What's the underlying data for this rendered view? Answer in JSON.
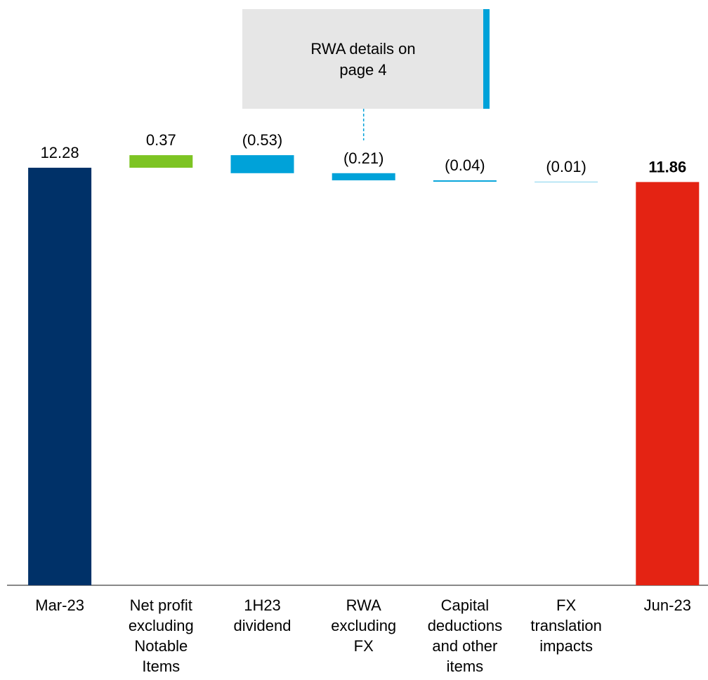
{
  "chart_data": {
    "type": "waterfall",
    "categories": [
      "Mar-23",
      "Net profit\nexcluding\nNotable\nItems",
      "1H23\ndividend",
      "RWA\nexcluding\nFX",
      "Capital\ndeductions\nand other\nitems",
      "FX\ntranslation\nimpacts",
      "Jun-23"
    ],
    "values": [
      12.28,
      0.37,
      -0.53,
      -0.21,
      -0.04,
      -0.01,
      11.86
    ],
    "value_labels": [
      "12.28",
      "0.37",
      "(0.53)",
      "(0.21)",
      "(0.04)",
      "(0.01)",
      "11.86"
    ],
    "totals": [
      true,
      false,
      false,
      false,
      false,
      false,
      true
    ],
    "colors": [
      "#003168",
      "#7dc423",
      "#00a2d9",
      "#00a2d9",
      "#00a2d9",
      "#00a2d9",
      "#e42313"
    ],
    "ylim": [
      0,
      13
    ],
    "annotation": {
      "text": "RWA details on\npage 4",
      "category": 3
    }
  }
}
